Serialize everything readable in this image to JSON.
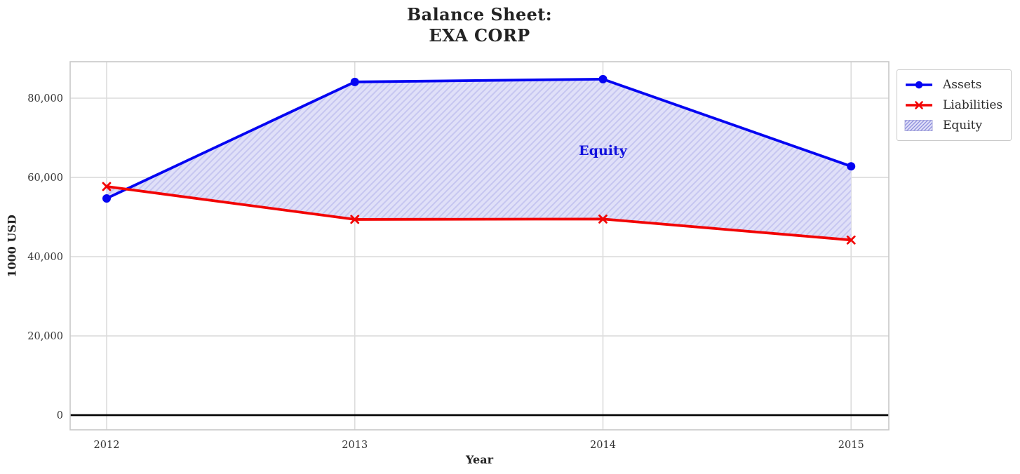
{
  "chart": {
    "title_line1": "Balance Sheet:",
    "title_line2": "EXA CORP",
    "xlabel": "Year",
    "ylabel": "1000 USD"
  },
  "chart_data": {
    "type": "line",
    "title": "Balance Sheet:\nEXA CORP",
    "xlabel": "Year",
    "ylabel": "1000 USD",
    "x": [
      2012,
      2013,
      2014,
      2015
    ],
    "xtick_labels": [
      "2012",
      "2013",
      "2014",
      "2015"
    ],
    "yticks": [
      0,
      20000,
      40000,
      60000,
      80000
    ],
    "ytick_labels": [
      "0",
      "20,000",
      "40,000",
      "60,000",
      "80,000"
    ],
    "xlim": [
      2011.853,
      2015.152
    ],
    "ylim": [
      -3700,
      89200
    ],
    "grid": true,
    "legend_position": "outside upper right",
    "series": [
      {
        "name": "Assets",
        "color": "#0404f2",
        "marker": "circle",
        "values": [
          54700,
          84100,
          84800,
          62800
        ]
      },
      {
        "name": "Liabilities",
        "color": "#f20404",
        "marker": "x",
        "values": [
          57700,
          49400,
          49500,
          44200
        ]
      }
    ],
    "fill_between": {
      "name": "Equity",
      "fill_color": "#e0e0f8",
      "hatch_color": "#c6c6f0",
      "hatch": "///",
      "edge_color": "#aeaede"
    },
    "annotation": {
      "text": "Equity",
      "x": 2014,
      "y": 66900,
      "color": "#1212dd"
    },
    "zero_line_color": "#000000",
    "grid_color": "#dcdcdc",
    "border_color": "#c8c8c8",
    "tick_color": "#333333"
  }
}
